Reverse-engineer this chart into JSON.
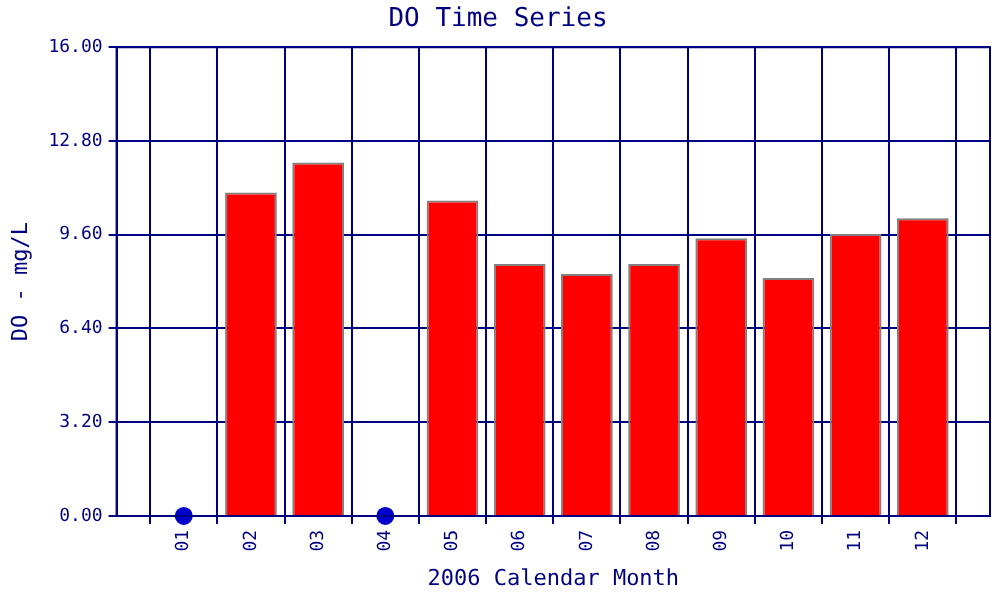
{
  "chart_data": {
    "type": "bar",
    "title": "DO Time Series",
    "xlabel": "2006 Calendar Month",
    "ylabel": "DO - mg/L",
    "categories": [
      "01",
      "02",
      "03",
      "04",
      "05",
      "06",
      "07",
      "08",
      "09",
      "10",
      "11",
      "12"
    ],
    "series": [
      {
        "color": "#ff0000",
        "values": [
          null,
          11.04,
          12.06,
          null,
          10.77,
          8.6,
          8.26,
          8.6,
          9.48,
          8.12,
          9.62,
          10.16
        ]
      },
      {
        "type": "scatter",
        "color": "#0000cc",
        "marker": "circle",
        "values": [
          0,
          null,
          null,
          0,
          null,
          null,
          null,
          null,
          null,
          null,
          null,
          null
        ]
      }
    ],
    "ylim": [
      0,
      16
    ],
    "yticks": [
      {
        "value": 0,
        "label": "0.00"
      },
      {
        "value": 3.2,
        "label": "3.20"
      },
      {
        "value": 6.4,
        "label": "6.40"
      },
      {
        "value": 9.6,
        "label": "9.60"
      },
      {
        "value": 12.8,
        "label": "12.80"
      },
      {
        "value": 16,
        "label": "16.00"
      }
    ],
    "grid": true,
    "legend": false
  }
}
